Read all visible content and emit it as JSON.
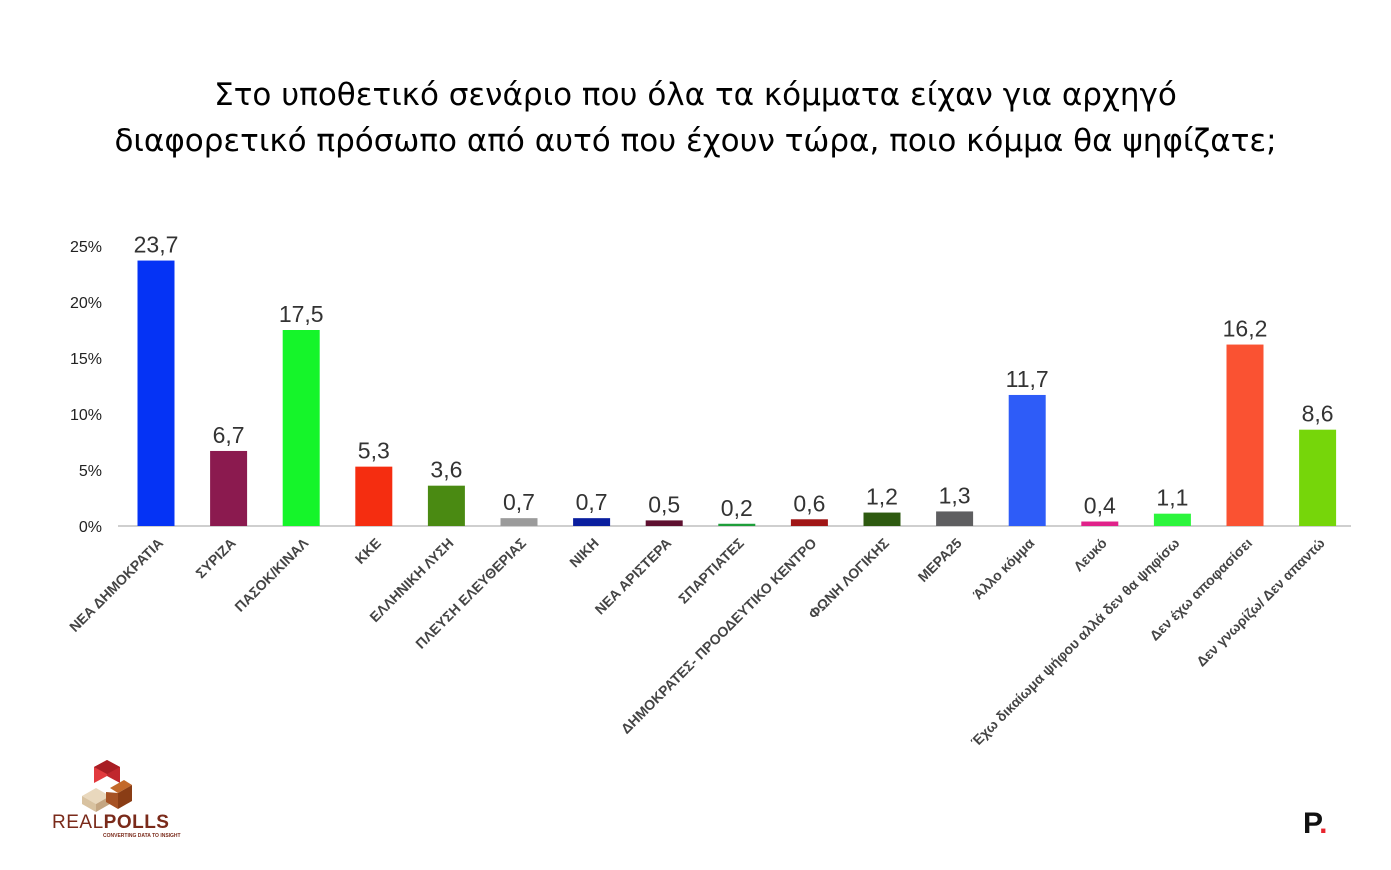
{
  "title": {
    "line1": "Στο υποθετικό σενάριο που όλα τα κόμματα είχαν για αρχηγό",
    "line2": "διαφορετικό πρόσωπο από αυτό που έχουν τώρα, ποιο κόμμα θα ψηφίζατε;"
  },
  "chart_data": {
    "type": "bar",
    "title": "Στο υποθετικό σενάριο που όλα τα κόμματα είχαν για αρχηγό διαφορετικό πρόσωπο από αυτό που έχουν τώρα, ποιο κόμμα θα ψηφίζατε;",
    "categories": [
      "ΝΕΑ ΔΗΜΟΚΡΑΤΙΑ",
      "ΣΥΡΙΖΑ",
      "ΠΑΣΟΚ/ΚΙΝΑΛ",
      "ΚΚΕ",
      "ΕΛΛΗΝΙΚΗ ΛΥΣΗ",
      "ΠΛΕΥΣΗ ΕΛΕΥΘΕΡΙΑΣ",
      "ΝΙΚΗ",
      "ΝΕΑ ΑΡΙΣΤΕΡΑ",
      "ΣΠΑΡΤΙΑΤΕΣ",
      "ΔΗΜΟΚΡΑΤΕΣ- ΠΡΟΟΔΕΥΤΙΚΟ ΚΕΝΤΡΟ",
      "ΦΩΝΗ ΛΟΓΙΚΗΣ",
      "ΜΕΡΑ25",
      "Άλλο κόμμα",
      "Λευκό",
      "Έχω δικαίωμα ψήφου αλλά δεν θα ψηφίσω",
      "Δεν έχω αποφασίσει",
      "Δεν γνωρίζω/ Δεν απαντώ"
    ],
    "values": [
      23.7,
      6.7,
      17.5,
      5.3,
      3.6,
      0.7,
      0.7,
      0.5,
      0.2,
      0.6,
      1.2,
      1.3,
      11.7,
      0.4,
      1.1,
      16.2,
      8.6
    ],
    "value_labels": [
      "23,7",
      "6,7",
      "17,5",
      "5,3",
      "3,6",
      "0,7",
      "0,7",
      "0,5",
      "0,2",
      "0,6",
      "1,2",
      "1,3",
      "11,7",
      "0,4",
      "1,1",
      "16,2",
      "8,6"
    ],
    "colors": [
      "#0533f5",
      "#8b1a4f",
      "#15f52a",
      "#f52d10",
      "#4a8a12",
      "#9b9b9b",
      "#0a1e9e",
      "#5e1030",
      "#1e9e3a",
      "#a01616",
      "#2e5a10",
      "#5e5e60",
      "#2e5cf8",
      "#e0228a",
      "#2cf53c",
      "#fa5232",
      "#76d60a"
    ],
    "yticks": [
      "0%",
      "5%",
      "10%",
      "15%",
      "20%",
      "25%"
    ],
    "ylim": [
      0,
      25
    ],
    "xlabel": "",
    "ylabel": "",
    "grid": false,
    "legend": "none"
  },
  "branding": {
    "left_name_part1": "REAL",
    "left_name_part2": "POLLS",
    "left_tagline": "CONVERTING DATA TO INSIGHT",
    "right_mark": "P",
    "right_dot": "."
  }
}
